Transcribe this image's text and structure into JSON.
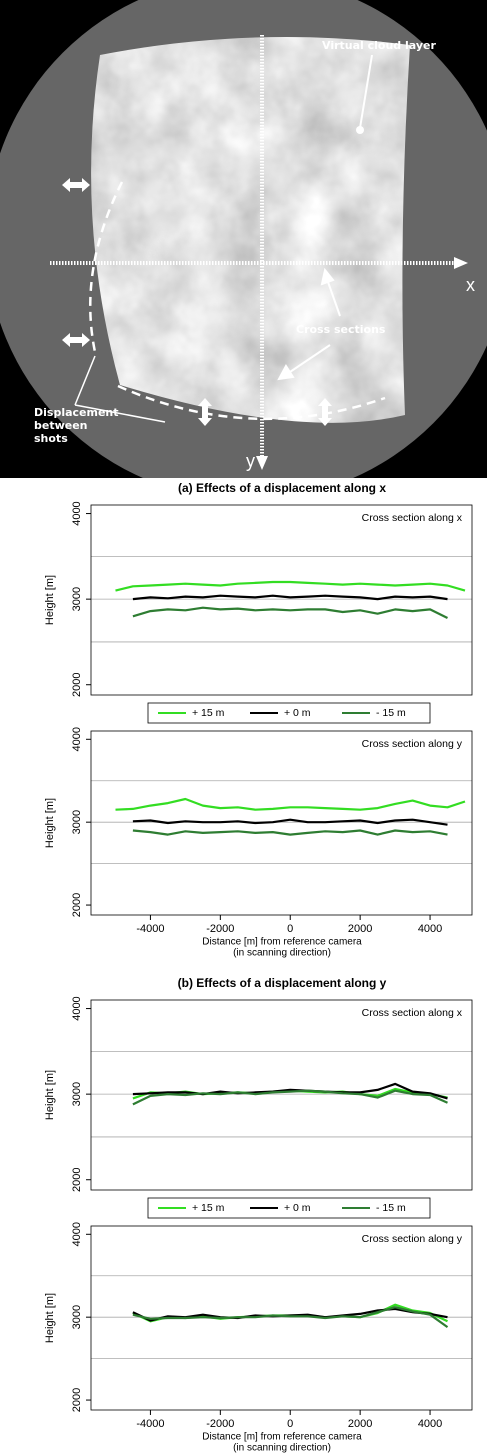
{
  "diagram": {
    "virtual_cloud_layer": "Virtual cloud layer",
    "x_axis": "x",
    "y_axis": "y",
    "cross_sections": "Cross sections",
    "displacement": [
      "Displacement",
      "between",
      "shots"
    ]
  },
  "chart_data": [
    {
      "type": "line",
      "title": "(a) Effects of a displacement along x",
      "annotation": "Cross section along x",
      "ylabel": "Height [m]",
      "legend": true,
      "x": [
        -5000,
        -4500,
        -4000,
        -3500,
        -3000,
        -2500,
        -2000,
        -1500,
        -1000,
        -500,
        0,
        500,
        1000,
        1500,
        2000,
        2500,
        3000,
        3500,
        4000,
        4500,
        5000
      ],
      "xlim": [
        -5700,
        5200
      ],
      "ylim": [
        1880,
        4100
      ],
      "yticks": [
        2000,
        3000,
        4000
      ],
      "grid_lines": [
        2500,
        3000,
        3500
      ],
      "series": [
        {
          "name": "+ 15 m",
          "color": "#33dd22",
          "values": [
            3100,
            3150,
            3160,
            3170,
            3180,
            3170,
            3160,
            3180,
            3190,
            3200,
            3200,
            3190,
            3180,
            3170,
            3180,
            3170,
            3160,
            3170,
            3180,
            3160,
            3100
          ]
        },
        {
          "name": "+ 0 m",
          "color": "#000000",
          "values": [
            null,
            3000,
            3020,
            3010,
            3030,
            3020,
            3040,
            3030,
            3020,
            3040,
            3020,
            3030,
            3040,
            3030,
            3020,
            3000,
            3030,
            3020,
            3030,
            3000,
            null
          ]
        },
        {
          "name": "- 15 m",
          "color": "#2e7d32",
          "values": [
            null,
            2800,
            2860,
            2880,
            2870,
            2900,
            2880,
            2890,
            2870,
            2880,
            2870,
            2880,
            2880,
            2850,
            2870,
            2830,
            2880,
            2860,
            2880,
            2780,
            null
          ]
        }
      ]
    },
    {
      "type": "line",
      "annotation": "Cross section along y",
      "ylabel": "Height [m]",
      "xlabel": [
        "Distance [m] from reference camera",
        "(in scanning direction)"
      ],
      "x": [
        -5000,
        -4500,
        -4000,
        -3500,
        -3000,
        -2500,
        -2000,
        -1500,
        -1000,
        -500,
        0,
        500,
        1000,
        1500,
        2000,
        2500,
        3000,
        3500,
        4000,
        4500,
        5000
      ],
      "xlim": [
        -5700,
        5200
      ],
      "xticks": [
        -4000,
        -2000,
        0,
        2000,
        4000
      ],
      "ylim": [
        1880,
        4100
      ],
      "yticks": [
        2000,
        3000,
        4000
      ],
      "grid_lines": [
        2500,
        3000,
        3500
      ],
      "series": [
        {
          "name": "+ 15 m",
          "color": "#33dd22",
          "values": [
            3150,
            3160,
            3200,
            3230,
            3280,
            3200,
            3170,
            3180,
            3150,
            3160,
            3180,
            3180,
            3170,
            3160,
            3150,
            3170,
            3220,
            3260,
            3200,
            3180,
            3250
          ]
        },
        {
          "name": "+ 0 m",
          "color": "#000000",
          "values": [
            null,
            3010,
            3020,
            2990,
            3010,
            3000,
            3000,
            3010,
            2990,
            3000,
            3030,
            3000,
            3000,
            3010,
            3020,
            2990,
            3020,
            3030,
            3000,
            2970,
            null
          ]
        },
        {
          "name": "- 15 m",
          "color": "#2e7d32",
          "values": [
            null,
            2900,
            2880,
            2850,
            2890,
            2870,
            2880,
            2890,
            2870,
            2880,
            2850,
            2870,
            2890,
            2880,
            2900,
            2850,
            2900,
            2880,
            2890,
            2850,
            null
          ]
        }
      ]
    },
    {
      "type": "line",
      "title": "(b) Effects of a displacement along y",
      "annotation": "Cross section along x",
      "ylabel": "Height [m]",
      "legend": true,
      "x": [
        -5000,
        -4500,
        -4000,
        -3500,
        -3000,
        -2500,
        -2000,
        -1500,
        -1000,
        -500,
        0,
        500,
        1000,
        1500,
        2000,
        2500,
        3000,
        3500,
        4000,
        4500,
        5000
      ],
      "xlim": [
        -5700,
        5200
      ],
      "ylim": [
        1880,
        4100
      ],
      "yticks": [
        2000,
        3000,
        4000
      ],
      "grid_lines": [
        2500,
        3000,
        3500
      ],
      "series": [
        {
          "name": "+ 15 m",
          "color": "#33dd22",
          "values": [
            null,
            2950,
            3020,
            3010,
            3030,
            3000,
            3010,
            3020,
            3010,
            3030,
            3040,
            3030,
            3020,
            3030,
            3000,
            2980,
            3060,
            3020,
            3000,
            2960,
            null
          ]
        },
        {
          "name": "+ 0 m",
          "color": "#000000",
          "values": [
            null,
            3000,
            3010,
            3020,
            3020,
            3000,
            3030,
            3010,
            3020,
            3030,
            3050,
            3040,
            3030,
            3020,
            3020,
            3050,
            3120,
            3030,
            3010,
            2950,
            null
          ]
        },
        {
          "name": "- 15 m",
          "color": "#2e7d32",
          "values": [
            null,
            2880,
            2980,
            3000,
            2990,
            3010,
            3000,
            3020,
            3000,
            3020,
            3030,
            3040,
            3030,
            3010,
            3000,
            2960,
            3040,
            3000,
            2990,
            2900,
            null
          ]
        }
      ]
    },
    {
      "type": "line",
      "annotation": "Cross section along y",
      "ylabel": "Height [m]",
      "xlabel": [
        "Distance [m] from reference camera",
        "(in scanning direction)"
      ],
      "x": [
        -5000,
        -4500,
        -4000,
        -3500,
        -3000,
        -2500,
        -2000,
        -1500,
        -1000,
        -500,
        0,
        500,
        1000,
        1500,
        2000,
        2500,
        3000,
        3500,
        4000,
        4500,
        5000
      ],
      "xlim": [
        -5700,
        5200
      ],
      "xticks": [
        -4000,
        -2000,
        0,
        2000,
        4000
      ],
      "ylim": [
        1880,
        4100
      ],
      "yticks": [
        2000,
        3000,
        4000
      ],
      "grid_lines": [
        2500,
        3000,
        3500
      ],
      "series": [
        {
          "name": "+ 15 m",
          "color": "#33dd22",
          "values": [
            null,
            3050,
            2950,
            3000,
            2990,
            3010,
            2980,
            3000,
            3010,
            3020,
            3020,
            3020,
            3000,
            3010,
            3000,
            3050,
            3150,
            3080,
            3050,
            2950,
            null
          ]
        },
        {
          "name": "+ 0 m",
          "color": "#000000",
          "values": [
            null,
            3060,
            2960,
            3010,
            3000,
            3030,
            3000,
            2990,
            3020,
            3010,
            3020,
            3030,
            3000,
            3020,
            3040,
            3080,
            3100,
            3060,
            3040,
            3000,
            null
          ]
        },
        {
          "name": "- 15 m",
          "color": "#2e7d32",
          "values": [
            null,
            3030,
            2980,
            2990,
            2990,
            3000,
            2990,
            3000,
            3000,
            3020,
            3010,
            3010,
            2990,
            3010,
            3000,
            3060,
            3120,
            3070,
            3030,
            2880,
            null
          ]
        }
      ]
    }
  ]
}
